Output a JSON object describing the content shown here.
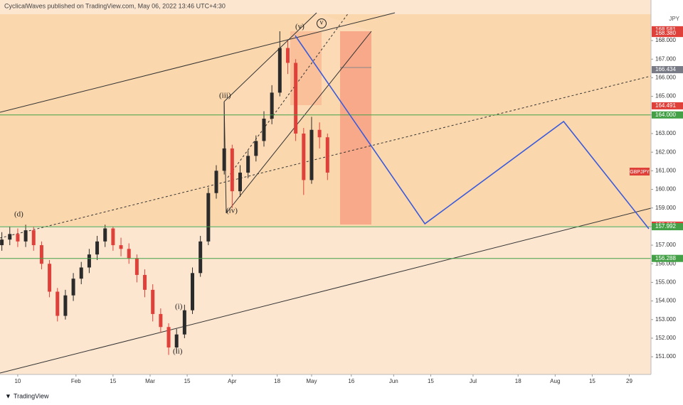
{
  "chart_data": {
    "type": "candlestick",
    "header": "CyclicalWaves published on TradingView.com, May 06, 2022 13:46 UTC+4:30",
    "symbol": "GBPJPY",
    "currency": "JPY",
    "footer": "TradingView",
    "up_color": "#2b2b2b",
    "down_color": "#e0403a",
    "x": [
      4,
      7,
      10,
      13,
      16,
      19,
      22,
      25,
      28,
      31,
      34,
      37,
      40,
      43,
      46,
      49,
      52,
      55,
      58,
      61,
      64,
      67,
      70,
      73,
      76,
      79,
      82,
      85,
      88,
      91,
      94,
      97,
      100,
      103,
      106,
      109,
      112,
      115,
      118,
      121,
      124,
      127
    ],
    "open": [
      157.0,
      157.3,
      157.6,
      157.2,
      157.8,
      157.0,
      156.0,
      154.5,
      153.2,
      154.3,
      155.2,
      155.8,
      156.5,
      157.2,
      157.9,
      157.0,
      156.8,
      156.3,
      155.4,
      154.6,
      153.3,
      152.6,
      151.5,
      152.2,
      153.5,
      155.5,
      157.2,
      159.8,
      161.0,
      162.2,
      159.9,
      160.9,
      161.8,
      162.6,
      163.8,
      165.2,
      167.6,
      166.8,
      163.0,
      160.5,
      163.2,
      162.8
    ],
    "high": [
      157.7,
      158.0,
      157.9,
      158.1,
      158.0,
      157.2,
      156.2,
      154.7,
      154.6,
      155.5,
      156.1,
      156.8,
      157.5,
      158.1,
      158.0,
      157.4,
      157.1,
      156.5,
      155.7,
      154.9,
      153.6,
      152.8,
      152.5,
      153.8,
      155.8,
      157.5,
      160.1,
      161.3,
      164.7,
      162.4,
      161.3,
      162.1,
      162.9,
      164.2,
      165.6,
      168.5,
      168.0,
      167.0,
      163.3,
      163.9,
      163.6,
      163.0
    ],
    "low": [
      156.7,
      157.0,
      156.9,
      156.9,
      156.7,
      155.7,
      154.2,
      152.9,
      153.0,
      154.0,
      154.9,
      155.5,
      156.2,
      156.9,
      156.7,
      156.4,
      156.0,
      155.0,
      154.2,
      152.9,
      152.3,
      151.1,
      151.2,
      152.0,
      153.3,
      155.3,
      157.0,
      159.5,
      160.8,
      159.0,
      159.6,
      160.6,
      161.5,
      162.3,
      163.5,
      165.0,
      166.2,
      162.6,
      159.7,
      160.3,
      162.2,
      160.5
    ],
    "close": [
      157.3,
      157.6,
      157.2,
      157.8,
      157.0,
      156.0,
      154.5,
      153.2,
      154.3,
      155.2,
      155.8,
      156.5,
      157.2,
      157.9,
      157.0,
      156.8,
      156.3,
      155.4,
      154.6,
      153.3,
      152.6,
      151.5,
      152.2,
      153.5,
      155.5,
      157.2,
      159.8,
      161.0,
      162.2,
      159.9,
      160.9,
      161.8,
      162.6,
      163.8,
      165.2,
      167.6,
      166.8,
      163.0,
      160.5,
      163.2,
      162.8,
      160.9
    ],
    "projection": {
      "color": "#3b5bdb",
      "x": [
        114.8,
        163.8,
        216.2,
        248.4
      ],
      "values": [
        168.27,
        158.15,
        163.65,
        157.88
      ]
    },
    "xlim": [
      3.3,
      249.2
    ],
    "ylim": [
      150.05,
      170.18
    ],
    "xticks": [
      {
        "value": 10,
        "label": "10"
      },
      {
        "value": 32,
        "label": "Feb"
      },
      {
        "value": 46,
        "label": "15"
      },
      {
        "value": 60,
        "label": "Mar"
      },
      {
        "value": 74,
        "label": "15"
      },
      {
        "value": 91,
        "label": "Apr"
      },
      {
        "value": 108,
        "label": "18"
      },
      {
        "value": 121,
        "label": "May"
      },
      {
        "value": 136,
        "label": "16"
      },
      {
        "value": 152,
        "label": "Jun"
      },
      {
        "value": 166,
        "label": "15"
      },
      {
        "value": 182,
        "label": "Jul"
      },
      {
        "value": 199,
        "label": "18"
      },
      {
        "value": 213,
        "label": "Aug"
      },
      {
        "value": 227,
        "label": "15"
      },
      {
        "value": 241,
        "label": "29"
      }
    ],
    "yticks": [
      {
        "value": 151,
        "label": "151.000"
      },
      {
        "value": 152,
        "label": "152.000"
      },
      {
        "value": 153,
        "label": "153.000"
      },
      {
        "value": 154,
        "label": "154.000"
      },
      {
        "value": 155,
        "label": "155.000"
      },
      {
        "value": 156,
        "label": "156.000"
      },
      {
        "value": 157,
        "label": "157.000"
      },
      {
        "value": 158,
        "label": "158.000"
      },
      {
        "value": 159,
        "label": "159.000"
      },
      {
        "value": 160,
        "label": "160.000"
      },
      {
        "value": 161,
        "label": "161.000"
      },
      {
        "value": 162,
        "label": "162.000"
      },
      {
        "value": 163,
        "label": "163.000"
      },
      {
        "value": 164,
        "label": "164.000"
      },
      {
        "value": 165,
        "label": "165.000"
      },
      {
        "value": 166,
        "label": "166.000"
      },
      {
        "value": 167,
        "label": "167.000"
      },
      {
        "value": 168,
        "label": "168.000"
      }
    ],
    "levels": [
      {
        "value": 168.581,
        "label": "168.581",
        "color": "#e0403a",
        "line": false
      },
      {
        "value": 168.38,
        "label": "168.380",
        "color": "#e0403a",
        "line": false
      },
      {
        "value": 166.436,
        "label": "166.436",
        "color": "#787b86",
        "line": false
      },
      {
        "value": 166.434,
        "label": "166.434",
        "color": "#787b86",
        "line": false
      },
      {
        "value": 164.491,
        "label": "164.491",
        "color": "#e0403a",
        "line": false
      },
      {
        "value": 164.0,
        "label": "164.000",
        "color": "#43a047",
        "line": true
      },
      {
        "value": 158.076,
        "label": "158.076",
        "color": "#e0403a",
        "line": false
      },
      {
        "value": 157.992,
        "label": "157.992",
        "color": "#43a047",
        "line": true
      },
      {
        "value": 156.288,
        "label": "156.288",
        "color": "#43a047",
        "line": true
      }
    ],
    "annotations": [
      "(d)",
      "(i)",
      "(ii)",
      "(iii)",
      "(iv)",
      "(v)",
      "v"
    ]
  }
}
